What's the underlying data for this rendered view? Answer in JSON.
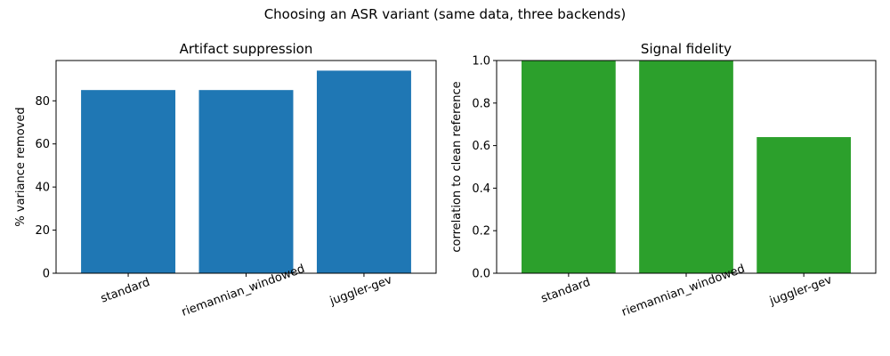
{
  "title": "Choosing an ASR variant (same data, three backends)",
  "chart_data": [
    {
      "type": "bar",
      "title": "Artifact suppression",
      "xlabel": "",
      "ylabel": "% variance removed",
      "categories": [
        "standard",
        "riemannian_windowed",
        "juggler-gev"
      ],
      "values": [
        85,
        85,
        94
      ],
      "ylim": [
        0,
        98.7
      ],
      "yticks": [
        0,
        20,
        40,
        60,
        80
      ],
      "ytick_labels": [
        "0",
        "20",
        "40",
        "60",
        "80"
      ],
      "color": "#1f77b4",
      "grid": false,
      "xtick_rotation": -20
    },
    {
      "type": "bar",
      "title": "Signal fidelity",
      "xlabel": "",
      "ylabel": "correlation to clean reference",
      "categories": [
        "standard",
        "riemannian_windowed",
        "juggler-gev"
      ],
      "values": [
        1.0,
        1.0,
        0.64
      ],
      "ylim": [
        0,
        1.0
      ],
      "yticks": [
        0,
        0.2,
        0.4,
        0.6,
        0.8,
        1.0
      ],
      "ytick_labels": [
        "0.0",
        "0.2",
        "0.4",
        "0.6",
        "0.8",
        "1.0"
      ],
      "color": "#2ca02c",
      "grid": false,
      "xtick_rotation": -20
    }
  ]
}
